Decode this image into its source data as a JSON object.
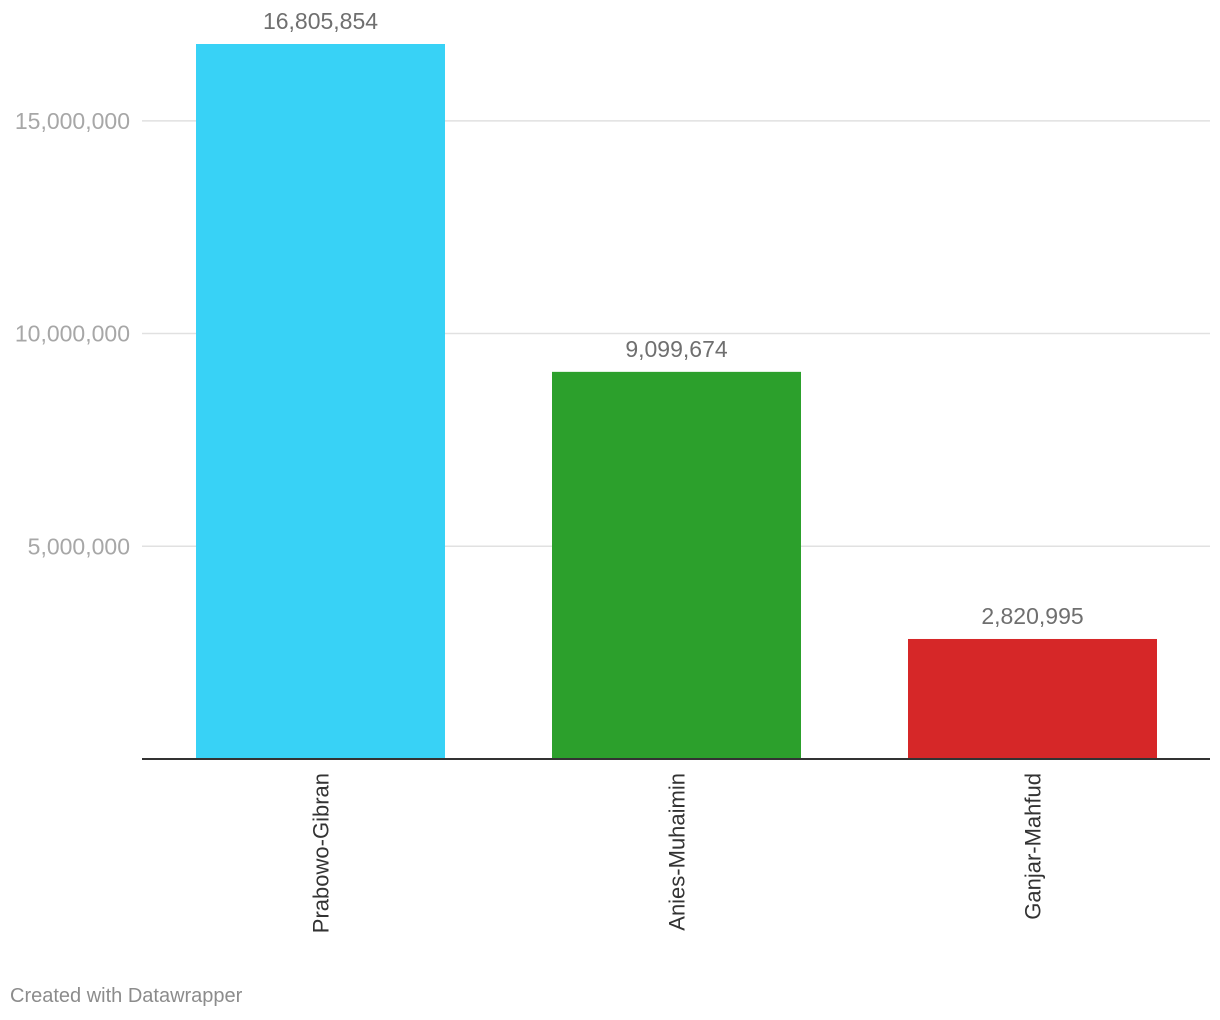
{
  "chart_data": {
    "type": "bar",
    "categories": [
      "Prabowo-Gibran",
      "Anies-Muhaimin",
      "Ganjar-Mahfud"
    ],
    "values": [
      16805854,
      9099674,
      2820995
    ],
    "value_labels": [
      "16,805,854",
      "9,099,674",
      "2,820,995"
    ],
    "colors": [
      "#38d2f6",
      "#2ca02c",
      "#d62728"
    ],
    "y_ticks": [
      5000000,
      10000000,
      15000000
    ],
    "y_tick_labels": [
      "5,000,000",
      "10,000,000",
      "15,000,000"
    ],
    "ylim": [
      0,
      16805854
    ],
    "grid": true,
    "title": "",
    "xlabel": "",
    "ylabel": ""
  },
  "credit": "Created with Datawrapper"
}
